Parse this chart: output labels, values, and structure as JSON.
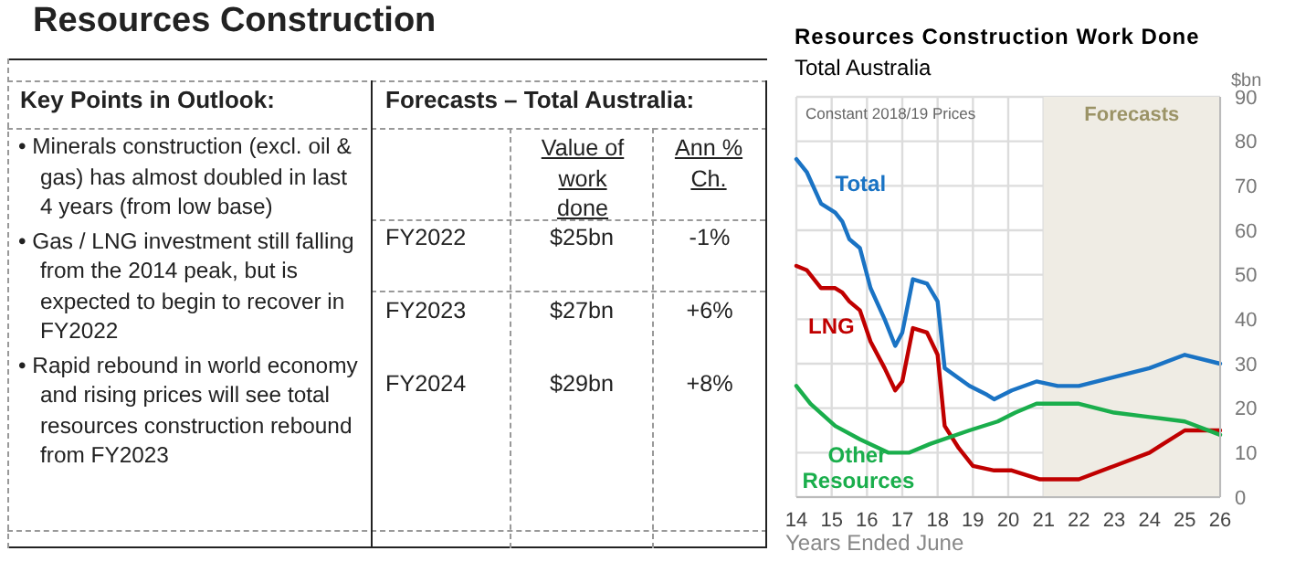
{
  "chart_data": [
    {
      "type": "other",
      "title": "Resources Construction",
      "annotations": [
        "Key Points in Outlook:",
        "Forecasts – Total Australia:",
        "• Minerals construction (excl. oil & gas) has almost doubled in last 4 years (from low base)",
        "• Gas / LNG investment still falling from the 2014 peak, but is expected to begin to recover in FY2022",
        "• Rapid rebound in world economy and rising prices will see total resources construction rebound from FY2023",
        "Value of work done",
        "Ann % Ch.",
        "FY2022",
        "$25bn",
        "-1%",
        "FY2023",
        "$27bn",
        "+6%",
        "FY2024",
        "$29bn",
        "+8%"
      ]
    },
    {
      "type": "line",
      "title": "Resources Construction Work Done",
      "subtitle": "Total Australia",
      "xlabel": "Years Ended June",
      "ylabel": "$bn",
      "annotations": [
        "Constant 2018/19 Prices"
      ],
      "series": [
        {
          "name": "Total",
          "color": "#1a73c4",
          "x": [
            14,
            14.3,
            14.7,
            15.1,
            15.3,
            15.5,
            15.8,
            16.1,
            16.5,
            16.8,
            17,
            17.3,
            17.7,
            18,
            18.2,
            18.9,
            19.4,
            19.6,
            20.1,
            20.8,
            21.4,
            22,
            23,
            24,
            25,
            26
          ],
          "values": [
            76,
            73,
            66,
            64,
            62,
            58,
            56,
            47,
            40,
            34,
            37,
            49,
            48,
            44,
            29,
            25,
            23,
            22,
            24,
            26,
            25,
            25,
            27,
            29,
            32,
            30
          ]
        },
        {
          "name": "LNG",
          "color": "#c00000",
          "x": [
            14,
            14.3,
            14.7,
            15.1,
            15.3,
            15.5,
            15.8,
            16.1,
            16.5,
            16.8,
            17,
            17.3,
            17.7,
            18,
            18.2,
            18.6,
            19,
            19.6,
            20.1,
            20.9,
            21.4,
            22,
            23,
            24,
            25,
            26
          ],
          "values": [
            52,
            51,
            47,
            47,
            46,
            44,
            42,
            35,
            29,
            24,
            26,
            38,
            37,
            32,
            16,
            11,
            7,
            6,
            6,
            4,
            4,
            4,
            7,
            10,
            15,
            15
          ]
        },
        {
          "name": "Other Resources",
          "color": "#1aae4c",
          "x": [
            14,
            14.4,
            15.1,
            15.8,
            16.6,
            17.2,
            17.8,
            18.9,
            19.7,
            20.2,
            20.8,
            21.4,
            22,
            23,
            24,
            25,
            26
          ],
          "values": [
            25,
            21,
            16,
            13,
            10,
            10,
            12,
            15,
            17,
            19,
            21,
            21,
            21,
            19,
            18,
            17,
            14
          ]
        }
      ],
      "xlim": [
        14,
        26
      ],
      "xticks": [
        14,
        15,
        16,
        17,
        18,
        19,
        20,
        21,
        22,
        23,
        24,
        25,
        26
      ],
      "ylim": [
        0,
        90
      ],
      "yticks": [
        0,
        10,
        20,
        30,
        40,
        50,
        60,
        70,
        80,
        90
      ],
      "grid": true,
      "marker": "none",
      "line_style": "solid",
      "legend": false,
      "bands": [
        {
          "axis": "x",
          "from": 21,
          "to": 26,
          "label": "Forecasts",
          "color": "#efece4"
        }
      ]
    }
  ]
}
